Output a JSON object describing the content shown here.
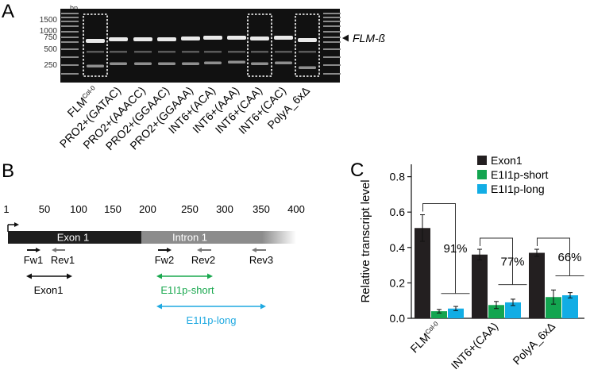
{
  "panel_a": {
    "letter": "A",
    "bp_unit": "bp",
    "size_labels": [
      "1500",
      "1000",
      "750",
      "500",
      "250"
    ],
    "band_label": "FLM-ß",
    "lanes": [
      {
        "label": "FLM",
        "sup": "Col-0"
      },
      {
        "label": "PRO2+(GATAC)",
        "sup": ""
      },
      {
        "label": "PRO2+(AAACC)",
        "sup": ""
      },
      {
        "label": "PRO2+(GGAAC)",
        "sup": ""
      },
      {
        "label": "PRO2+(GGAAA)",
        "sup": ""
      },
      {
        "label": "INT6+(ACA)",
        "sup": ""
      },
      {
        "label": "INT6+(AAA)",
        "sup": ""
      },
      {
        "label": "INT6+(CAA)",
        "sup": ""
      },
      {
        "label": "INT6+(CAC)",
        "sup": ""
      },
      {
        "label": "PolyA_6xΔ",
        "sup": ""
      }
    ]
  },
  "panel_b": {
    "letter": "B",
    "scale_ticks": [
      "1",
      "50",
      "100",
      "150",
      "200",
      "250",
      "300",
      "350",
      "400"
    ],
    "exon_label": "Exon 1",
    "intron_label": "Intron 1",
    "primers": [
      "Fw1",
      "Rev1",
      "Fw2",
      "Rev2",
      "Rev3"
    ],
    "amplicons": [
      "Exon1",
      "E1I1p-short",
      "E1I1p-long"
    ],
    "colors": {
      "exon": "#1e1e1e",
      "intron": "#8c8c8c",
      "short": "#1aa84f",
      "long": "#1fa9e1"
    }
  },
  "panel_c": {
    "letter": "C",
    "colors": {
      "exon1": "#231f20",
      "short": "#13a550",
      "long": "#12ade5"
    }
  },
  "chart_data": {
    "type": "bar",
    "categories": [
      {
        "label": "FLM",
        "sup": "Col-0"
      },
      {
        "label": "INT6+(CAA)",
        "sup": ""
      },
      {
        "label": "PolyA_6xΔ",
        "sup": ""
      }
    ],
    "series": [
      {
        "name": "Exon1",
        "values": [
          0.51,
          0.36,
          0.37
        ],
        "errors": [
          0.075,
          0.03,
          0.02
        ]
      },
      {
        "name": "E1I1p-short",
        "values": [
          0.04,
          0.075,
          0.12
        ],
        "errors": [
          0.01,
          0.02,
          0.04
        ]
      },
      {
        "name": "E1I1p-long",
        "values": [
          0.055,
          0.09,
          0.13
        ],
        "errors": [
          0.012,
          0.018,
          0.015
        ]
      }
    ],
    "annotations": [
      "91%",
      "77%",
      "66%"
    ],
    "ylabel": "Relative transcript level",
    "xlabel": "",
    "ylim": [
      0,
      0.87
    ],
    "yticks": [
      "0.0",
      "0.2",
      "0.4",
      "0.6",
      "0.8"
    ],
    "legend_position": "top-right"
  }
}
